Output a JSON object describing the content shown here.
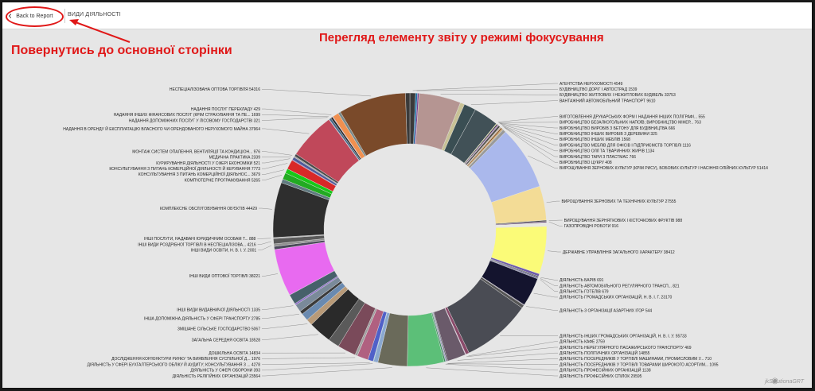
{
  "topbar": {
    "back_label": "Back to Report",
    "report_title": "ВИДИ ДІЯЛЬНОСТІ"
  },
  "annotations": {
    "return_text": "Повернутись до основної сторінки",
    "focus_text": "Перегляд елементу звіту у режимі фокусування",
    "accent_color": "#e01818"
  },
  "icons": {
    "back": "chevron-left-icon",
    "watermark": "camera-icon"
  },
  "watermark": "jkSolutionaGRT",
  "chart_data": {
    "type": "donut",
    "title": "",
    "slices": [
      {
        "label": "АГЕНТСТВА НЕРУХОМОСТІ 4549",
        "value": 4549,
        "color": "#3a3a3a"
      },
      {
        "label": "БУДІВНИЦТВО ДОРІГ І АВТОСТРАД 1539",
        "value": 1539,
        "color": "#1d6fa5"
      },
      {
        "label": "",
        "value": 1200,
        "color": "#7a3c8c"
      },
      {
        "label": "БУДІВНИЦТВО ЖИТЛОВИХ І НЕЖИТЛОВИХ БУДІВЕЛЬ 33753",
        "value": 33753,
        "color": "#b59592"
      },
      {
        "label": "",
        "value": 3500,
        "color": "#c8c296"
      },
      {
        "label": "ВАНТАЖНИЙ АВТОМОБІЛЬНИЙ ТРАНСПОРТ 9610",
        "value": 9610,
        "color": "#3a4e53"
      },
      {
        "label": "",
        "value": 20000,
        "color": "#415157"
      },
      {
        "label": "ВИГОТОВЛЕННЯ ДРУКАРСЬКИХ ФОРМ І НАДАННЯ ІНШИХ ПОЛІГРАФІ... 555",
        "value": 555,
        "color": "#e6e08a"
      },
      {
        "label": "ВИРОБНИЦТВО БЕЗАЛКОГОЛЬНИХ НАПОЇВ; ВИРОБНИЦТВО МІНЕР... 763",
        "value": 763,
        "color": "#222"
      },
      {
        "label": "ВИРОБНИЦТВО ВИРОБІВ З БЕТОНУ ДЛЯ БУДІВНИЦТВА 666",
        "value": 666,
        "color": "#6b3fa0"
      },
      {
        "label": "ВИРОБНИЦТВО ІНШИХ ВИРОБІВ З ДЕРЕВИНИ 325",
        "value": 325,
        "color": "#d86f5e"
      },
      {
        "label": "ВИРОБНИЦТВО ІНШИХ МЕБЛІВ 1568",
        "value": 1568,
        "color": "#4a4a4a"
      },
      {
        "label": "ВИРОБНИЦТВО МЕБЛІВ ДЛЯ ОФІСІВ І ПІДПРИЄМСТВ ТОРГІВЛІ 1116",
        "value": 1116,
        "color": "#c9b8a8"
      },
      {
        "label": "ВИРОБНИЦТВО ОЛІЇ ТА ТВАРИННИХ ЖИРІВ 1134",
        "value": 1134,
        "color": "#8a5a2a"
      },
      {
        "label": "ВИРОБНИЦТВО ТАРИ З ПЛАСТМАС 766",
        "value": 766,
        "color": "#d8a050"
      },
      {
        "label": "ВИРОБНИЦТВО ЦУКРУ 408",
        "value": 408,
        "color": "#5a7a8a"
      },
      {
        "label": "",
        "value": 2500,
        "color": "#999"
      },
      {
        "label": "ВИРОЩУВАННЯ ЗЕРНОВИХ КУЛЬТУР (КРІМ РИСУ), БОБОВИХ КУЛЬТУР І НАСІННЯ ОЛІЙНИХ КУЛЬТУР 51414",
        "value": 51414,
        "color": "#aab8ec"
      },
      {
        "label": "ВИРОЩУВАННЯ ЗЕРНОВИХ ТА ТЕХНІЧНИХ КУЛЬТУР 27555",
        "value": 27555,
        "color": "#f3dc96"
      },
      {
        "label": "ВИРОЩУВАННЯ ЗЕРНЯТКОВИХ І КІСТОЧКОВИХ ФРУКТІВ 988",
        "value": 988,
        "color": "#444"
      },
      {
        "label": "ГАЗОПРОВІДНІ РОБОТИ 916",
        "value": 916,
        "color": "#5b3c6e"
      },
      {
        "label": "",
        "value": 3000,
        "color": "#e8e8e0"
      },
      {
        "label": "ДЕРЖАВНЕ УПРАВЛІННЯ ЗАГАЛЬНОГО ХАРАКТЕРУ 38412",
        "value": 38412,
        "color": "#fbfb78"
      },
      {
        "label": "",
        "value": 2000,
        "color": "#6c5aa8"
      },
      {
        "label": "ДІЯЛЬНІСТЬ БАРІВ 691",
        "value": 691,
        "color": "#2a2a2a"
      },
      {
        "label": "ДІЯЛЬНІСТЬ АВТОМОБІЛЬНОГО РЕГУЛЯРНОГО ТРАНСП... 821",
        "value": 821,
        "color": "#3c3c6a"
      },
      {
        "label": "ДІЯЛЬНІСТЬ ГОТЕЛІВ 679",
        "value": 679,
        "color": "#5a5a8a"
      },
      {
        "label": "ДІЯЛЬНІСТЬ ГРОМАДСЬКИХ ОРГАНІЗАЦІЙ, Н. В. І. Г. 23170",
        "value": 23170,
        "color": "#14142e"
      },
      {
        "label": "ДІЯЛЬНІСТЬ З ОРГАНІЗАЦІЇ АЗАРТНИХ ІГОР 544",
        "value": 544,
        "color": "#7a6e8e"
      },
      {
        "label": "",
        "value": 2500,
        "color": "#555"
      },
      {
        "label": "ДІЯЛЬНІСТЬ ІНШИХ ГРОМАДСЬКИХ ОРГАНІЗАЦІЙ, Н. В. І. У. 55733",
        "value": 55733,
        "color": "#4a4c54"
      },
      {
        "label": "ДІЯЛЬНІСТЬ КАФЕ 2759",
        "value": 2759,
        "color": "#8a4a6a"
      },
      {
        "label": "ДІЯЛЬНІСТЬ НЕРЕГУЛЯРНОГО ПАСАЖИРСЬКОГО ТРАНСПОРТУ 469",
        "value": 469,
        "color": "#c8a0c8"
      },
      {
        "label": "ДІЯЛЬНІСТЬ ПОЛІТИЧНИХ ОРГАНІЗАЦІЙ 14855",
        "value": 14855,
        "color": "#6a5a6a"
      },
      {
        "label": "ДІЯЛЬНІСТЬ ПОСЕРЕДНИКІВ У ТОРГІВЛІ МАШИНАМИ, ПРОМИСЛОВИМ У... 710",
        "value": 710,
        "color": "#2a2a3a"
      },
      {
        "label": "ДІЯЛЬНІСТЬ ПОСЕРЕДНИКІВ У ТОРГІВЛІ ТОВАРАМИ ШИРОКОГО АСОРТИМ... 1095",
        "value": 1095,
        "color": "#a0a0c0"
      },
      {
        "label": "ДІЯЛЬНІСТЬ ПРОФЕСІЙНИХ ОРГАНІЗАЦІЙ 1138",
        "value": 1138,
        "color": "#3a8a5a"
      },
      {
        "label": "ДІЯЛЬНІСТЬ ПРОФЕСІЙНИХ СПІЛОК 29595",
        "value": 29595,
        "color": "#5cbf78"
      },
      {
        "label": "ДІЯЛЬНІСТЬ РЕЛІГІЙНИХ ОРГАНІЗАЦІЙ 23564",
        "value": 23564,
        "color": "#6a6a5a"
      },
      {
        "label": "",
        "value": 3500,
        "color": "#8aa8d0"
      },
      {
        "label": "ДІЯЛЬНІСТЬ У СФЕРІ ОБОРОНИ 393",
        "value": 393,
        "color": "#2aa8c8"
      },
      {
        "label": "ДІЯЛЬНІСТЬ У СФЕРІ БУХГАЛТЕРСЬКОГО ОБЛІКУ Й АУДИТУ; КОНСУЛЬТУВАННЯ З ... 4278",
        "value": 4278,
        "color": "#5060c8"
      },
      {
        "label": "",
        "value": 9000,
        "color": "#b06080"
      },
      {
        "label": "ДОСЛІДЖЕННЯ КОН'ЮНКТУРИ РИНКУ ТА ВИЯВЛЕННЯ СУСПІЛЬНОЇ Д... 1976",
        "value": 1976,
        "color": "#a0a0a0"
      },
      {
        "label": "ДОШКІЛЬНА ОСВІТА 14834",
        "value": 14834,
        "color": "#7a4a5a"
      },
      {
        "label": "",
        "value": 9000,
        "color": "#5a5a5a"
      },
      {
        "label": "ЗАГАЛЬНА СЕРЕДНЯ ОСВІТА 18528",
        "value": 18528,
        "color": "#2a2a2a"
      },
      {
        "label": "ЗМІШАНЕ СІЛЬСЬКЕ ГОСПОДАРСТВО 5067",
        "value": 5067,
        "color": "#b89a78"
      },
      {
        "label": "",
        "value": 6000,
        "color": "#6a8ab0"
      },
      {
        "label": "ІНША ДОПОМІЖНА ДІЯЛЬНІСТЬ У СФЕРІ ТРАНСПОРТУ 2785",
        "value": 2785,
        "color": "#3a3a3a"
      },
      {
        "label": "",
        "value": 6000,
        "color": "#7a8a9a"
      },
      {
        "label": "ІНШІ ВИДИ ВИДАВНИЧОЇ ДІЯЛЬНОСТІ 1335",
        "value": 1335,
        "color": "#8a6ac8"
      },
      {
        "label": "",
        "value": 8000,
        "color": "#46606a"
      },
      {
        "label": "ІНШІ ВИДИ ОПТОВОЇ ТОРГІВЛІ 38221",
        "value": 38221,
        "color": "#e86af0"
      },
      {
        "label": "",
        "value": 2500,
        "color": "#4a4a5a"
      },
      {
        "label": "ІНШІ ВИДИ ОСВІТИ, Н. В. І. У. 2001",
        "value": 2001,
        "color": "#909090"
      },
      {
        "label": "ІНШІ ВИДИ РОЗДРІБНОЇ ТОРГІВЛІ В НЕСПЕЦІАЛІЗОВА... 4216",
        "value": 4216,
        "color": "#5a5a5a"
      },
      {
        "label": "ІНШІ ПОСЛУГИ, НАДАВАНІ ЮРИДИЧНИМ ОСОБАМ Т... 888",
        "value": 888,
        "color": "#aaaaaa"
      },
      {
        "label": "КОМПЛЕКСНЕ ОБСЛУГОВУВАННЯ ОБ'ЄКТІВ 44429",
        "value": 44429,
        "color": "#2e2e2e"
      },
      {
        "label": "",
        "value": 3000,
        "color": "#607a80"
      },
      {
        "label": "КОМП'ЮТЕРНЕ ПРОГРАМУВАННЯ 5265",
        "value": 5265,
        "color": "#22aa22"
      },
      {
        "label": "КОНСУЛЬТУВАННЯ З ПИТАНЬ КОМЕРЦІЙНОЇ ДІЯЛЬНОС... 3679",
        "value": 3679,
        "color": "#18c818"
      },
      {
        "label": "КОНСУЛЬТУВАННЯ З ПИТАНЬ КОМЕРЦІЙНОЇ ДІЯЛЬНОСТІ Й КЕРУВАННЯ 7773",
        "value": 7773,
        "color": "#d82828"
      },
      {
        "label": "КУРИРУВАННЯ ДІЯЛЬНОСТІ У СФЕРІ ЕКОНОМІКИ 521",
        "value": 521,
        "color": "#8a2a8a"
      },
      {
        "label": "МЕДИЧНА ПРАКТИКА 2339",
        "value": 2339,
        "color": "#505a9a"
      },
      {
        "label": "МОНТАЖ СИСТЕМ ОПАЛЕННЯ, ВЕНТИЛЯЦІЇ ТА КОНДИЦІОН... 976",
        "value": 976,
        "color": "#a0a0a0"
      },
      {
        "label": "",
        "value": 2000,
        "color": "#4a4a4a"
      },
      {
        "label": "НАДАННЯ В ОРЕНДУ Й ЕКСПЛУАТАЦІЮ ВЛАСНОГО ЧИ ОРЕНДОВАНОГО НЕРУХОМОГО МАЙНА 37964",
        "value": 37964,
        "color": "#c0485a"
      },
      {
        "label": "НАДАННЯ ДОПОМІЖНИХ ПОСЛУГ У ЛІСОВОМУ ГОСПОДАРСТВІ 321",
        "value": 321,
        "color": "#8a8aa0"
      },
      {
        "label": "НАДАННЯ ІНШИХ ФІНАНСОВИХ ПОСЛУГ (КРІМ СТРАХУВАННЯ ТА ПЕ... 1699",
        "value": 1699,
        "color": "#4a6a8a"
      },
      {
        "label": "",
        "value": 1500,
        "color": "#2a2a2a"
      },
      {
        "label": "НАДАННЯ ПОСЛУГ ПЕРЕКЛАДУ 429",
        "value": 429,
        "color": "#c080c0"
      },
      {
        "label": "",
        "value": 5000,
        "color": "#f09050"
      },
      {
        "label": "",
        "value": 2000,
        "color": "#7a8a8a"
      },
      {
        "label": "НЕСПЕЦІАЛІЗОВАНА ОПТОВА ТОРГІВЛЯ 54316",
        "value": 54316,
        "color": "#7a4a2a"
      },
      {
        "label": "",
        "value": 3500,
        "color": "#3a3a3a"
      }
    ]
  }
}
